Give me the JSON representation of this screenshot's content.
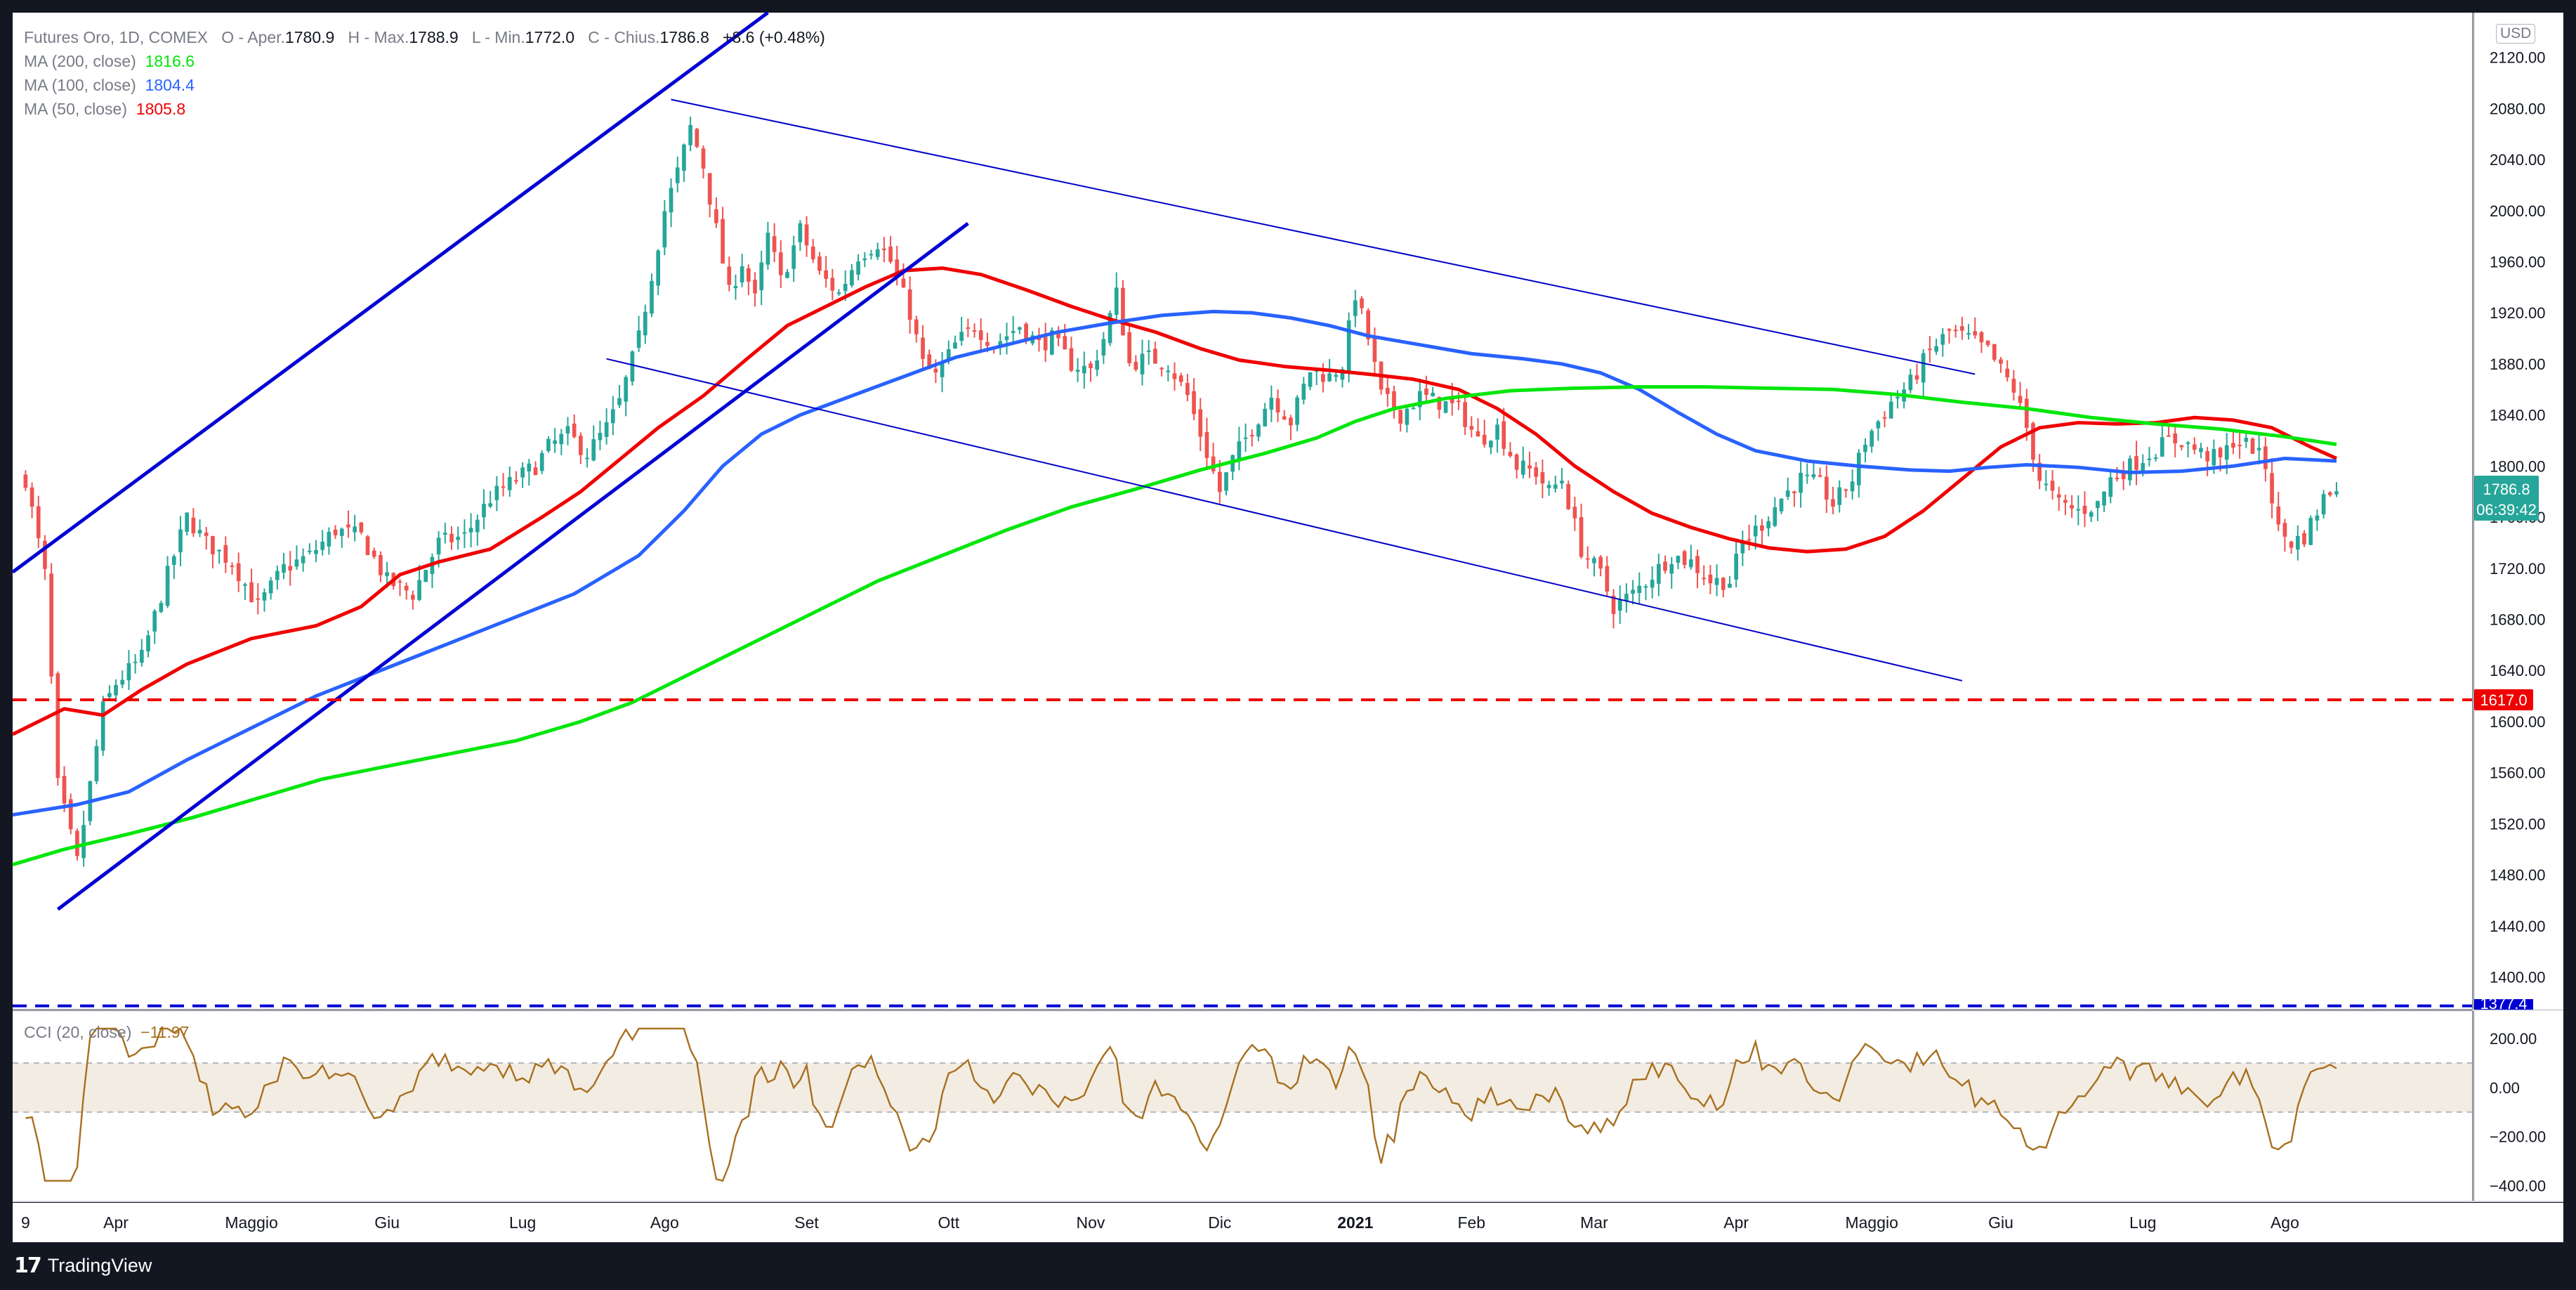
{
  "header": {
    "symbol": "Futures Oro, 1D, COMEX",
    "ohlc": [
      {
        "label": "O - Aper.",
        "value": "1780.9"
      },
      {
        "label": "H - Max.",
        "value": "1788.9"
      },
      {
        "label": "L - Min.",
        "value": "1772.0"
      },
      {
        "label": "C - Chius.",
        "value": "1786.8"
      }
    ],
    "change": "+8.6 (+0.48%)",
    "indicators": [
      {
        "label": "MA (200, close)",
        "value": "1816.6",
        "color": "#00e60a"
      },
      {
        "label": "MA (100, close)",
        "value": "1804.4",
        "color": "#2962ff"
      },
      {
        "label": "MA (50, close)",
        "value": "1805.8",
        "color": "#f00000"
      }
    ]
  },
  "currency": "USD",
  "price_axis": [
    "2120.00",
    "2080.00",
    "2040.00",
    "2000.00",
    "1960.00",
    "1920.00",
    "1880.00",
    "1840.00",
    "1800.00",
    "1760.00",
    "1720.00",
    "1680.00",
    "1640.00",
    "1600.00",
    "1560.00",
    "1520.00",
    "1480.00",
    "1440.00",
    "1400.00"
  ],
  "price_tags": {
    "last_price": "1786.8",
    "countdown": "06:39:42",
    "support_level": "1617.0",
    "bottom_level": "1377.4"
  },
  "cci": {
    "label": "CCI (20, close)",
    "value": "−11.97",
    "axis": [
      "200.00",
      "0.00",
      "−200.00",
      "−400.00"
    ],
    "band": [
      100,
      -100
    ],
    "ylim": [
      -450,
      280
    ]
  },
  "time_axis": [
    {
      "label": "9",
      "x": 0
    },
    {
      "label": "Apr",
      "x": 14
    },
    {
      "label": "Maggio",
      "x": 35
    },
    {
      "label": "Giu",
      "x": 56
    },
    {
      "label": "Lug",
      "x": 77
    },
    {
      "label": "Ago",
      "x": 99
    },
    {
      "label": "Set",
      "x": 121
    },
    {
      "label": "Ott",
      "x": 143
    },
    {
      "label": "Nov",
      "x": 165
    },
    {
      "label": "Dic",
      "x": 185
    },
    {
      "label": "2021",
      "x": 206
    },
    {
      "label": "Feb",
      "x": 224
    },
    {
      "label": "Mar",
      "x": 243
    },
    {
      "label": "Apr",
      "x": 265
    },
    {
      "label": "Maggio",
      "x": 286
    },
    {
      "label": "Giu",
      "x": 306
    },
    {
      "label": "Lug",
      "x": 328
    },
    {
      "label": "Ago",
      "x": 350
    }
  ],
  "chart_data": {
    "type": "candlestick",
    "title": "Futures Oro, 1D, COMEX",
    "xlim": [
      -2,
      379
    ],
    "ylim": [
      1375,
      2155
    ],
    "anchors": [
      [
        0,
        1790
      ],
      [
        3,
        1715
      ],
      [
        5,
        1550
      ],
      [
        8,
        1490
      ],
      [
        12,
        1610
      ],
      [
        14,
        1630
      ],
      [
        18,
        1650
      ],
      [
        22,
        1715
      ],
      [
        25,
        1760
      ],
      [
        28,
        1740
      ],
      [
        32,
        1725
      ],
      [
        36,
        1690
      ],
      [
        40,
        1720
      ],
      [
        44,
        1730
      ],
      [
        48,
        1750
      ],
      [
        52,
        1745
      ],
      [
        56,
        1710
      ],
      [
        60,
        1700
      ],
      [
        64,
        1740
      ],
      [
        68,
        1745
      ],
      [
        72,
        1775
      ],
      [
        76,
        1790
      ],
      [
        79,
        1800
      ],
      [
        81,
        1815
      ],
      [
        84,
        1825
      ],
      [
        87,
        1810
      ],
      [
        90,
        1830
      ],
      [
        92,
        1850
      ],
      [
        95,
        1900
      ],
      [
        97,
        1950
      ],
      [
        99,
        2000
      ],
      [
        101,
        2030
      ],
      [
        103,
        2065
      ],
      [
        105,
        2035
      ],
      [
        107,
        1985
      ],
      [
        109,
        1935
      ],
      [
        111,
        1960
      ],
      [
        113,
        1930
      ],
      [
        115,
        1980
      ],
      [
        117,
        1945
      ],
      [
        120,
        1985
      ],
      [
        123,
        1950
      ],
      [
        126,
        1935
      ],
      [
        129,
        1965
      ],
      [
        132,
        1975
      ],
      [
        134,
        1960
      ],
      [
        137,
        1920
      ],
      [
        139,
        1880
      ],
      [
        141,
        1870
      ],
      [
        144,
        1895
      ],
      [
        147,
        1910
      ],
      [
        150,
        1895
      ],
      [
        154,
        1910
      ],
      [
        157,
        1895
      ],
      [
        159,
        1900
      ],
      [
        162,
        1880
      ],
      [
        165,
        1875
      ],
      [
        167,
        1900
      ],
      [
        169,
        1935
      ],
      [
        171,
        1880
      ],
      [
        174,
        1885
      ],
      [
        177,
        1880
      ],
      [
        180,
        1855
      ],
      [
        183,
        1810
      ],
      [
        185,
        1780
      ],
      [
        187,
        1805
      ],
      [
        190,
        1830
      ],
      [
        193,
        1855
      ],
      [
        196,
        1835
      ],
      [
        199,
        1875
      ],
      [
        202,
        1870
      ],
      [
        204,
        1880
      ],
      [
        206,
        1935
      ],
      [
        208,
        1900
      ],
      [
        210,
        1855
      ],
      [
        213,
        1840
      ],
      [
        216,
        1855
      ],
      [
        219,
        1850
      ],
      [
        222,
        1845
      ],
      [
        225,
        1820
      ],
      [
        228,
        1830
      ],
      [
        231,
        1800
      ],
      [
        234,
        1795
      ],
      [
        236,
        1780
      ],
      [
        238,
        1790
      ],
      [
        241,
        1735
      ],
      [
        244,
        1715
      ],
      [
        246,
        1690
      ],
      [
        249,
        1700
      ],
      [
        252,
        1715
      ],
      [
        255,
        1730
      ],
      [
        258,
        1725
      ],
      [
        261,
        1710
      ],
      [
        264,
        1710
      ],
      [
        266,
        1740
      ],
      [
        269,
        1755
      ],
      [
        272,
        1775
      ],
      [
        275,
        1790
      ],
      [
        278,
        1785
      ],
      [
        280,
        1770
      ],
      [
        283,
        1790
      ],
      [
        285,
        1820
      ],
      [
        287,
        1835
      ],
      [
        289,
        1850
      ],
      [
        292,
        1865
      ],
      [
        295,
        1890
      ],
      [
        298,
        1905
      ],
      [
        301,
        1900
      ],
      [
        304,
        1890
      ],
      [
        306,
        1875
      ],
      [
        308,
        1860
      ],
      [
        310,
        1830
      ],
      [
        312,
        1790
      ],
      [
        315,
        1770
      ],
      [
        318,
        1765
      ],
      [
        321,
        1770
      ],
      [
        323,
        1790
      ],
      [
        326,
        1800
      ],
      [
        329,
        1810
      ],
      [
        332,
        1820
      ],
      [
        334,
        1820
      ],
      [
        337,
        1810
      ],
      [
        340,
        1805
      ],
      [
        342,
        1820
      ],
      [
        345,
        1815
      ],
      [
        347,
        1800
      ],
      [
        349,
        1750
      ],
      [
        351,
        1740
      ],
      [
        353,
        1745
      ],
      [
        356,
        1775
      ],
      [
        358,
        1786.8
      ]
    ],
    "moving_averages": [
      {
        "name": "MA (50, close)",
        "color": "#f00000",
        "points": [
          [
            -2,
            1590
          ],
          [
            6,
            1610
          ],
          [
            12,
            1605
          ],
          [
            18,
            1625
          ],
          [
            25,
            1645
          ],
          [
            35,
            1665
          ],
          [
            45,
            1675
          ],
          [
            52,
            1690
          ],
          [
            58,
            1715
          ],
          [
            64,
            1725
          ],
          [
            72,
            1735
          ],
          [
            80,
            1760
          ],
          [
            86,
            1780
          ],
          [
            92,
            1805
          ],
          [
            98,
            1830
          ],
          [
            105,
            1855
          ],
          [
            112,
            1885
          ],
          [
            118,
            1910
          ],
          [
            124,
            1925
          ],
          [
            130,
            1940
          ],
          [
            136,
            1953
          ],
          [
            142,
            1955
          ],
          [
            148,
            1950
          ],
          [
            155,
            1938
          ],
          [
            162,
            1925
          ],
          [
            168,
            1915
          ],
          [
            175,
            1905
          ],
          [
            182,
            1892
          ],
          [
            188,
            1883
          ],
          [
            195,
            1878
          ],
          [
            202,
            1875
          ],
          [
            208,
            1872
          ],
          [
            215,
            1868
          ],
          [
            222,
            1860
          ],
          [
            228,
            1845
          ],
          [
            234,
            1825
          ],
          [
            240,
            1800
          ],
          [
            246,
            1780
          ],
          [
            252,
            1763
          ],
          [
            258,
            1752
          ],
          [
            264,
            1743
          ],
          [
            270,
            1736
          ],
          [
            276,
            1733
          ],
          [
            282,
            1735
          ],
          [
            288,
            1745
          ],
          [
            294,
            1765
          ],
          [
            300,
            1790
          ],
          [
            306,
            1815
          ],
          [
            312,
            1830
          ],
          [
            318,
            1834
          ],
          [
            324,
            1833
          ],
          [
            330,
            1834
          ],
          [
            336,
            1838
          ],
          [
            342,
            1836
          ],
          [
            348,
            1830
          ],
          [
            354,
            1815
          ],
          [
            358,
            1806
          ]
        ]
      },
      {
        "name": "MA (100, close)",
        "color": "#2962ff",
        "points": [
          [
            -2,
            1527
          ],
          [
            8,
            1535
          ],
          [
            16,
            1545
          ],
          [
            25,
            1570
          ],
          [
            35,
            1595
          ],
          [
            45,
            1620
          ],
          [
            55,
            1640
          ],
          [
            65,
            1660
          ],
          [
            75,
            1680
          ],
          [
            85,
            1700
          ],
          [
            95,
            1730
          ],
          [
            102,
            1765
          ],
          [
            108,
            1800
          ],
          [
            114,
            1825
          ],
          [
            120,
            1840
          ],
          [
            128,
            1855
          ],
          [
            136,
            1870
          ],
          [
            144,
            1885
          ],
          [
            152,
            1895
          ],
          [
            160,
            1905
          ],
          [
            168,
            1912
          ],
          [
            176,
            1918
          ],
          [
            184,
            1921
          ],
          [
            190,
            1920
          ],
          [
            196,
            1916
          ],
          [
            202,
            1910
          ],
          [
            208,
            1902
          ],
          [
            216,
            1895
          ],
          [
            224,
            1888
          ],
          [
            232,
            1884
          ],
          [
            238,
            1880
          ],
          [
            244,
            1873
          ],
          [
            250,
            1860
          ],
          [
            256,
            1842
          ],
          [
            262,
            1825
          ],
          [
            268,
            1812
          ],
          [
            276,
            1804
          ],
          [
            284,
            1800
          ],
          [
            292,
            1797
          ],
          [
            298,
            1796
          ],
          [
            304,
            1799
          ],
          [
            310,
            1801
          ],
          [
            318,
            1799
          ],
          [
            326,
            1795
          ],
          [
            334,
            1796
          ],
          [
            342,
            1800
          ],
          [
            350,
            1806
          ],
          [
            358,
            1804
          ]
        ]
      },
      {
        "name": "MA (200, close)",
        "color": "#00e60a",
        "points": [
          [
            -2,
            1488
          ],
          [
            6,
            1500
          ],
          [
            16,
            1512
          ],
          [
            26,
            1525
          ],
          [
            36,
            1540
          ],
          [
            46,
            1555
          ],
          [
            56,
            1565
          ],
          [
            66,
            1575
          ],
          [
            76,
            1585
          ],
          [
            86,
            1600
          ],
          [
            94,
            1615
          ],
          [
            102,
            1635
          ],
          [
            112,
            1660
          ],
          [
            122,
            1685
          ],
          [
            132,
            1710
          ],
          [
            142,
            1730
          ],
          [
            152,
            1750
          ],
          [
            162,
            1768
          ],
          [
            172,
            1782
          ],
          [
            182,
            1797
          ],
          [
            192,
            1810
          ],
          [
            200,
            1822
          ],
          [
            206,
            1835
          ],
          [
            212,
            1845
          ],
          [
            220,
            1853
          ],
          [
            230,
            1859
          ],
          [
            240,
            1861
          ],
          [
            250,
            1862
          ],
          [
            260,
            1862
          ],
          [
            270,
            1861
          ],
          [
            280,
            1860
          ],
          [
            290,
            1856
          ],
          [
            300,
            1850
          ],
          [
            310,
            1845
          ],
          [
            320,
            1838
          ],
          [
            330,
            1833
          ],
          [
            340,
            1829
          ],
          [
            350,
            1823
          ],
          [
            358,
            1817
          ]
        ]
      }
    ],
    "trendlines": [
      {
        "from": [
          -2,
          1717
        ],
        "to": [
          115,
          2155
        ],
        "color": "#0000d4"
      },
      {
        "from": [
          5,
          1453
        ],
        "to": [
          146,
          1990
        ],
        "color": "#0000d4"
      },
      {
        "from": [
          100,
          2087
        ],
        "to": [
          302,
          1872
        ],
        "color": "#0000c8",
        "thin": true
      },
      {
        "from": [
          90,
          1884
        ],
        "to": [
          300,
          1632
        ],
        "color": "#0000c8",
        "thin": true
      }
    ],
    "horizontal_lines": [
      {
        "y": 1617.0,
        "color": "#f00000",
        "style": "dashed"
      },
      {
        "y": 1377.4,
        "color": "#0000d4",
        "style": "dashed"
      }
    ]
  }
}
